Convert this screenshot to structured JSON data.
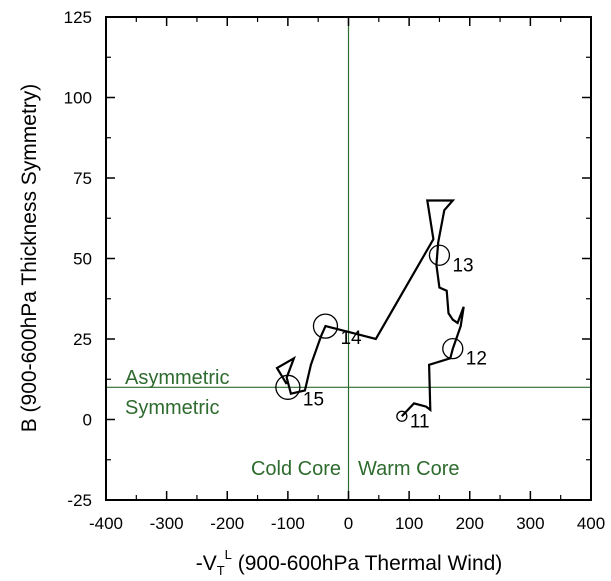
{
  "chart_data": {
    "type": "line",
    "title": "",
    "xlabel_parts": {
      "prefix": "-V",
      "sub": "T",
      "sup": "L",
      "suffix": " (900-600hPa Thermal Wind)"
    },
    "ylabel": "B (900-600hPa Thickness Symmetry)",
    "xlim": [
      -400,
      400
    ],
    "ylim": [
      -25,
      125
    ],
    "xticks": [
      -400,
      -300,
      -200,
      -100,
      0,
      100,
      200,
      300,
      400
    ],
    "yticks": [
      -25,
      0,
      25,
      50,
      75,
      100,
      125
    ],
    "grid": false,
    "reference_lines": {
      "x": 0,
      "y": 10,
      "color": "#2e6b2e"
    },
    "region_labels": {
      "asymmetric": "Asymmetric",
      "symmetric": "Symmetric",
      "cold_core": "Cold Core",
      "warm_core": "Warm Core"
    },
    "track": [
      [
        88,
        1
      ],
      [
        108,
        5
      ],
      [
        128,
        4
      ],
      [
        135,
        3
      ],
      [
        133,
        17
      ],
      [
        168,
        19
      ],
      [
        172,
        22
      ],
      [
        185,
        29
      ],
      [
        190,
        35
      ],
      [
        180,
        30
      ],
      [
        172,
        31
      ],
      [
        165,
        33
      ],
      [
        162,
        40
      ],
      [
        150,
        41
      ],
      [
        145,
        48
      ],
      [
        148,
        55
      ],
      [
        158,
        65
      ],
      [
        172,
        68
      ],
      [
        130,
        68
      ],
      [
        140,
        56
      ],
      [
        45,
        25
      ],
      [
        25,
        26
      ],
      [
        -38,
        29
      ],
      [
        -45,
        26
      ],
      [
        -62,
        17
      ],
      [
        -72,
        9
      ],
      [
        -95,
        8
      ],
      [
        -102,
        13
      ],
      [
        -90,
        19
      ],
      [
        -118,
        16
      ],
      [
        -102,
        11
      ]
    ],
    "markers": [
      {
        "label": "11",
        "x": 88,
        "y": 1,
        "size": "small"
      },
      {
        "label": "12",
        "x": 172,
        "y": 22,
        "size": "medium"
      },
      {
        "label": "13",
        "x": 150,
        "y": 51,
        "size": "medium"
      },
      {
        "label": "14",
        "x": -38,
        "y": 29,
        "size": "large"
      },
      {
        "label": "15",
        "x": -100,
        "y": 10,
        "size": "large"
      }
    ]
  }
}
